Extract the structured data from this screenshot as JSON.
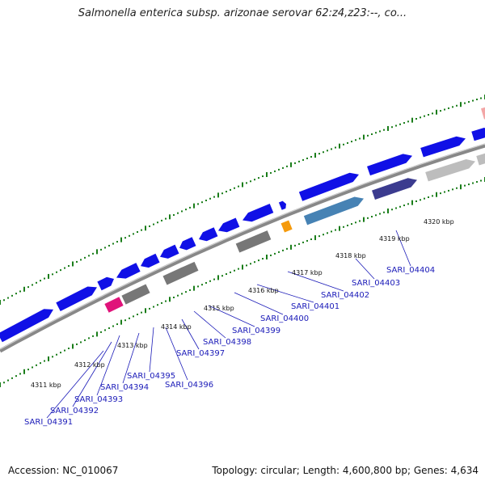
{
  "title": "Salmonella enterica subsp. arizonae serovar 62:z4,z23:--, co...",
  "footer": {
    "accession": "Accession: NC_010067",
    "stats": "Topology: circular; Length: 4,600,800 bp; Genes: 4,634"
  },
  "colors": {
    "cds": "#1010e6",
    "rna": "#e0137a",
    "pseudo": "#777777",
    "light": "#bdbdbd",
    "steel": "#4682b4",
    "purple": "#3b3b8f",
    "orange": "#f59a0c",
    "pink": "#f3a6a6",
    "dots": "#1a7d1a",
    "backbone": "#888888",
    "label": "#1a1ab8"
  },
  "kbp_labels": [
    "4311 kbp",
    "4312 kbp",
    "4313 kbp",
    "4314 kbp",
    "4315 kbp",
    "4316 kbp",
    "4317 kbp",
    "4318 kbp",
    "4319 kbp",
    "4320 kbp"
  ],
  "genes": [
    "SARI_04391",
    "SARI_04392",
    "SARI_04393",
    "SARI_04394",
    "SARI_04395",
    "SARI_04396",
    "SARI_04397",
    "SARI_04398",
    "SARI_04399",
    "SARI_04400",
    "SARI_04401",
    "SARI_04402",
    "SARI_04403",
    "SARI_04404"
  ]
}
